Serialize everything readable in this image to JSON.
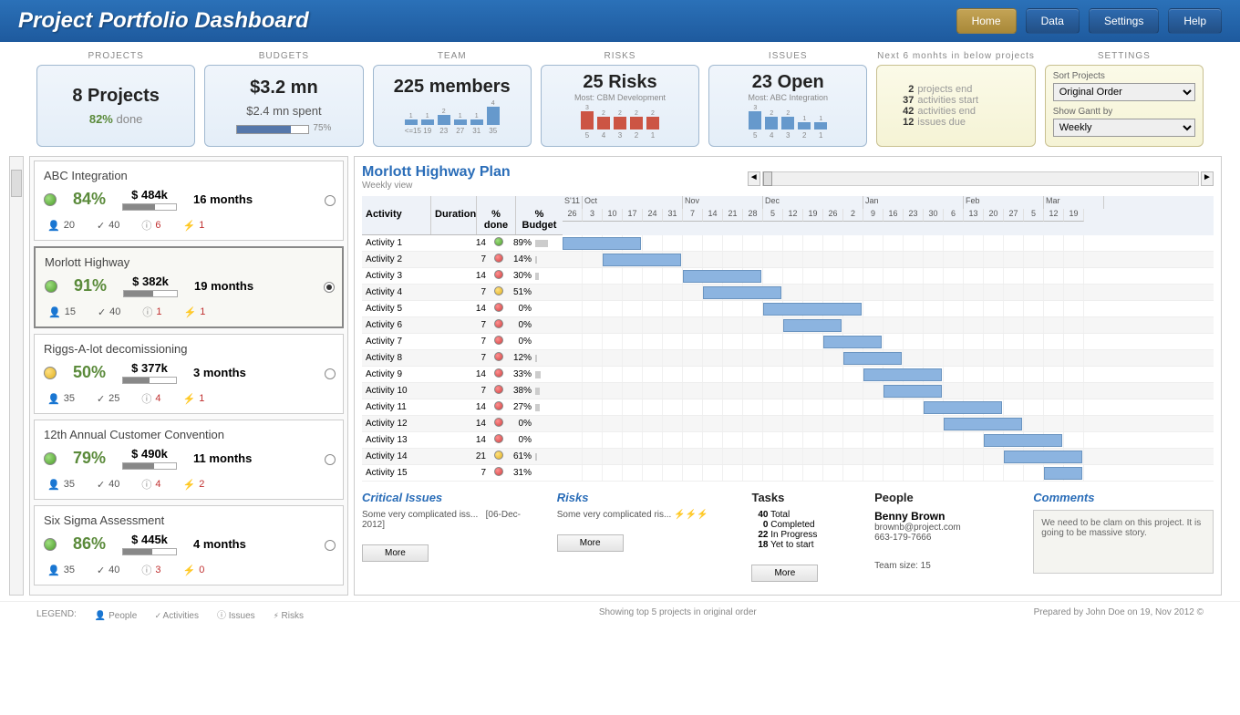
{
  "header": {
    "title": "Project Portfolio Dashboard"
  },
  "nav": {
    "home": "Home",
    "data": "Data",
    "settings": "Settings",
    "help": "Help"
  },
  "cards": {
    "projects": {
      "label": "PROJECTS",
      "value": "8 Projects",
      "done_pct": "82%",
      "done_label": " done"
    },
    "budgets": {
      "label": "BUDGETS",
      "value": "$3.2 mn",
      "spent": "$2.4 mn spent",
      "pct_label": "75%",
      "pct": 75
    },
    "team": {
      "label": "TEAM",
      "value": "225 members",
      "bars": [
        1,
        1,
        2,
        1,
        1,
        4
      ],
      "labels": [
        "<=15",
        "19",
        "23",
        "27",
        "31",
        "35"
      ]
    },
    "risks": {
      "label": "RISKS",
      "value": "25 Risks",
      "most": "Most: CBM Development",
      "bars": [
        3,
        2,
        2,
        2,
        2
      ],
      "labels": [
        "5",
        "4",
        "3",
        "2",
        "1"
      ]
    },
    "issues": {
      "label": "ISSUES",
      "value": "23 Open",
      "most": "Most: ABC Integration",
      "bars": [
        3,
        2,
        2,
        1,
        1
      ],
      "labels": [
        "5",
        "4",
        "3",
        "2",
        "1"
      ]
    },
    "next6": {
      "label": "Next 6 monhts in below projects",
      "lines": [
        {
          "n": "2",
          "t": "projects end"
        },
        {
          "n": "37",
          "t": "activities start"
        },
        {
          "n": "42",
          "t": "activities end"
        },
        {
          "n": "12",
          "t": "issues due"
        }
      ]
    },
    "settings": {
      "label": "SETTINGS",
      "sort_label": "Sort Projects",
      "sort_value": "Original Order",
      "gantt_label": "Show Gantt by",
      "gantt_value": "Weekly"
    }
  },
  "projects": [
    {
      "name": "ABC Integration",
      "status": "green",
      "pct": "84%",
      "budget": "$ 484k",
      "budget_prog": 60,
      "duration": "16 months",
      "people": "20",
      "activities": "40",
      "issues": "6",
      "risks": "1",
      "selected": false
    },
    {
      "name": "Morlott Highway",
      "status": "green",
      "pct": "91%",
      "budget": "$ 382k",
      "budget_prog": 55,
      "duration": "19 months",
      "people": "15",
      "activities": "40",
      "issues": "1",
      "risks": "1",
      "selected": true
    },
    {
      "name": "Riggs-A-lot decomissioning",
      "status": "yellow",
      "pct": "50%",
      "budget": "$ 377k",
      "budget_prog": 50,
      "duration": "3 months",
      "people": "35",
      "activities": "25",
      "issues": "4",
      "risks": "1",
      "selected": false
    },
    {
      "name": "12th Annual Customer Convention",
      "status": "green",
      "pct": "79%",
      "budget": "$ 490k",
      "budget_prog": 58,
      "duration": "11 months",
      "people": "35",
      "activities": "40",
      "issues": "4",
      "risks": "2",
      "selected": false
    },
    {
      "name": "Six Sigma Assessment",
      "status": "green",
      "pct": "86%",
      "budget": "$ 445k",
      "budget_prog": 55,
      "duration": "4 months",
      "people": "35",
      "activities": "40",
      "issues": "3",
      "risks": "0",
      "selected": false
    }
  ],
  "detail": {
    "title": "Morlott Highway Plan",
    "sub": "Weekly view",
    "header_cols": {
      "activity": "Activity",
      "duration": "Duration",
      "pct": "% done",
      "budget": "% Budget"
    },
    "months": [
      "S'11",
      "Oct",
      "Nov",
      "Dec",
      "Jan",
      "Feb",
      "Mar"
    ],
    "month_widths": [
      1,
      5,
      4,
      5,
      5,
      4,
      3
    ],
    "days": [
      "26",
      "3",
      "10",
      "17",
      "24",
      "31",
      "7",
      "14",
      "21",
      "28",
      "5",
      "12",
      "19",
      "26",
      "2",
      "9",
      "16",
      "23",
      "30",
      "6",
      "13",
      "20",
      "27",
      "5",
      "12",
      "19"
    ],
    "activities": [
      {
        "name": "Activity 1",
        "dur": 14,
        "dot": "green",
        "pct": "89%",
        "bud": 45,
        "start": 0,
        "len": 4
      },
      {
        "name": "Activity 2",
        "dur": 7,
        "dot": "red",
        "pct": "14%",
        "bud": 6,
        "start": 2,
        "len": 4
      },
      {
        "name": "Activity 3",
        "dur": 14,
        "dot": "red",
        "pct": "30%",
        "bud": 14,
        "start": 6,
        "len": 4
      },
      {
        "name": "Activity 4",
        "dur": 7,
        "dot": "yellow",
        "pct": "51%",
        "bud": 0,
        "start": 7,
        "len": 4
      },
      {
        "name": "Activity 5",
        "dur": 14,
        "dot": "red",
        "pct": "0%",
        "bud": 0,
        "start": 10,
        "len": 5
      },
      {
        "name": "Activity 6",
        "dur": 7,
        "dot": "red",
        "pct": "0%",
        "bud": 0,
        "start": 11,
        "len": 3
      },
      {
        "name": "Activity 7",
        "dur": 7,
        "dot": "red",
        "pct": "0%",
        "bud": 0,
        "start": 13,
        "len": 3
      },
      {
        "name": "Activity 8",
        "dur": 7,
        "dot": "red",
        "pct": "12%",
        "bud": 8,
        "start": 14,
        "len": 3
      },
      {
        "name": "Activity 9",
        "dur": 14,
        "dot": "red",
        "pct": "33%",
        "bud": 20,
        "start": 15,
        "len": 4
      },
      {
        "name": "Activity 10",
        "dur": 7,
        "dot": "red",
        "pct": "38%",
        "bud": 18,
        "start": 16,
        "len": 3
      },
      {
        "name": "Activity 11",
        "dur": 14,
        "dot": "red",
        "pct": "27%",
        "bud": 16,
        "start": 18,
        "len": 4
      },
      {
        "name": "Activity 12",
        "dur": 14,
        "dot": "red",
        "pct": "0%",
        "bud": 0,
        "start": 19,
        "len": 4
      },
      {
        "name": "Activity 13",
        "dur": 14,
        "dot": "red",
        "pct": "0%",
        "bud": 0,
        "start": 21,
        "len": 4
      },
      {
        "name": "Activity 14",
        "dur": 21,
        "dot": "yellow",
        "pct": "61%",
        "bud": 5,
        "start": 22,
        "len": 4
      },
      {
        "name": "Activity 15",
        "dur": 7,
        "dot": "red",
        "pct": "31%",
        "bud": 0,
        "start": 24,
        "len": 2
      }
    ]
  },
  "bottom": {
    "issues": {
      "title": "Critical Issues",
      "text": "Some very complicated iss...",
      "date": "[06-Dec-2012]",
      "more": "More"
    },
    "risks": {
      "title": "Risks",
      "text": "Some very complicated ris...",
      "more": "More"
    },
    "tasks": {
      "title": "Tasks",
      "lines": [
        {
          "n": "40",
          "t": "Total"
        },
        {
          "n": "0",
          "t": "Completed"
        },
        {
          "n": "22",
          "t": "In Progress"
        },
        {
          "n": "18",
          "t": "Yet to start"
        }
      ],
      "more": "More"
    },
    "people": {
      "title": "People",
      "name": "Benny Brown",
      "email": "brownb@project.com",
      "phone": "663-179-7666",
      "team": "Team size: 15"
    },
    "comments": {
      "title": "Comments",
      "text": "We need to be clam on this project. It is going to be massive story."
    }
  },
  "footer": {
    "legend_label": "LEGEND:",
    "legend": [
      {
        "icon": "👤",
        "label": "People"
      },
      {
        "icon": "✓",
        "label": "Activities"
      },
      {
        "icon": "ⓘ",
        "label": "Issues"
      },
      {
        "icon": "⚡",
        "label": "Risks"
      }
    ],
    "center": "Showing top 5 projects in original order",
    "right": "Prepared by John Doe on 19, Nov 2012 "
  },
  "colors": {
    "header_bg": "#1e5a9e",
    "accent": "#2a6db8",
    "green": "#5a8a3a",
    "gantt_bar": "#8cb4e0"
  }
}
